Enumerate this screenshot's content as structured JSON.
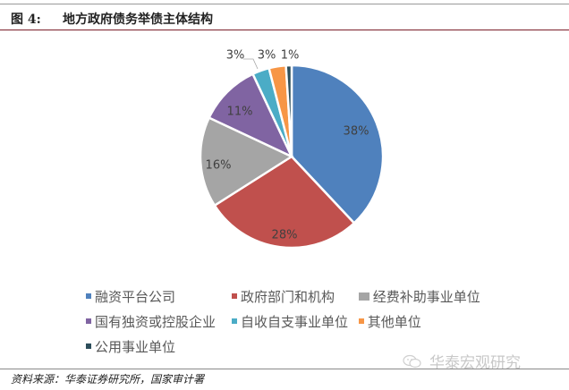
{
  "header": {
    "figure_label": "图 4:",
    "title": "地方政府债务举债主体结构"
  },
  "chart_data": {
    "type": "pie",
    "title": "地方政府债务举债主体结构",
    "start_angle_deg": 0,
    "direction": "clockwise",
    "categories": [
      "融资平台公司",
      "政府部门和机构",
      "经费补助事业单位",
      "国有独资或控股企业",
      "自收自支事业单位",
      "其他单位",
      "公用事业单位"
    ],
    "values": [
      38,
      28,
      16,
      11,
      3,
      3,
      1
    ],
    "labels": [
      "38%",
      "28%",
      "16%",
      "11%",
      "3%",
      "3%",
      "1%"
    ],
    "colors": [
      "#4f81bd",
      "#c0504d",
      "#a5a5a5",
      "#8064a2",
      "#4bacc6",
      "#f79646",
      "#2c4d5a"
    ],
    "legend_position": "bottom"
  },
  "legend": {
    "items": [
      {
        "label": "融资平台公司",
        "color": "#4f81bd"
      },
      {
        "label": "政府部门和机构",
        "color": "#c0504d"
      },
      {
        "label": "经费补助事业单位",
        "color": "#a5a5a5"
      },
      {
        "label": "国有独资或控股企业",
        "color": "#8064a2"
      },
      {
        "label": "自收自支事业单位",
        "color": "#4bacc6"
      },
      {
        "label": "其他单位",
        "color": "#f79646"
      },
      {
        "label": "公用事业单位",
        "color": "#2c4d5a"
      }
    ]
  },
  "footer": {
    "source": "资料来源：华泰证券研究所，国家审计署",
    "watermark": "华泰宏观研究",
    "watermark_icon": "wechat-icon"
  }
}
